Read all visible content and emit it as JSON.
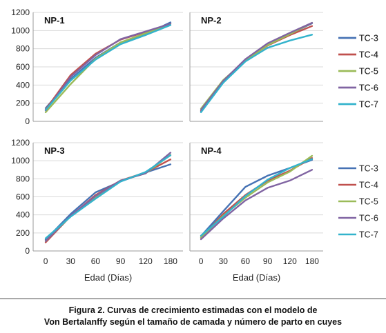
{
  "chart_data": [
    {
      "type": "line",
      "title": "NP-1",
      "categories": [
        "0",
        "30",
        "60",
        "90",
        "120",
        "180"
      ],
      "ylim": [
        0,
        1200
      ],
      "yticks": [
        0,
        200,
        400,
        600,
        800,
        1000,
        1200
      ],
      "xlabel": "",
      "ylabel": "",
      "legend": "right",
      "series": [
        {
          "name": "TC-3",
          "values": [
            145,
            465,
            700,
            870,
            960,
            1090
          ]
        },
        {
          "name": "TC-4",
          "values": [
            130,
            510,
            745,
            900,
            985,
            1075
          ]
        },
        {
          "name": "TC-5",
          "values": [
            100,
            410,
            690,
            870,
            970,
            1075
          ]
        },
        {
          "name": "TC-6",
          "values": [
            120,
            490,
            730,
            905,
            990,
            1075
          ]
        },
        {
          "name": "TC-7",
          "values": [
            125,
            450,
            680,
            850,
            950,
            1060
          ]
        }
      ]
    },
    {
      "type": "line",
      "title": "NP-2",
      "categories": [
        "0",
        "30",
        "60",
        "90",
        "120",
        "180"
      ],
      "ylim": [
        0,
        1200
      ],
      "yticks": [
        0,
        200,
        400,
        600,
        800,
        1000,
        1200
      ],
      "xlabel": "",
      "ylabel": "",
      "legend": "right",
      "series": [
        {
          "name": "TC-3",
          "values": [
            110,
            430,
            670,
            840,
            960,
            1080
          ]
        },
        {
          "name": "TC-4",
          "values": [
            120,
            440,
            675,
            835,
            950,
            1050
          ]
        },
        {
          "name": "TC-5",
          "values": [
            140,
            455,
            670,
            840,
            960,
            1085
          ]
        },
        {
          "name": "TC-6",
          "values": [
            125,
            445,
            685,
            860,
            975,
            1085
          ]
        },
        {
          "name": "TC-7",
          "values": [
            100,
            425,
            660,
            810,
            890,
            955
          ]
        }
      ]
    },
    {
      "type": "line",
      "title": "NP-3",
      "categories": [
        "0",
        "30",
        "60",
        "90",
        "120",
        "180"
      ],
      "ylim": [
        0,
        1200
      ],
      "yticks": [
        0,
        200,
        400,
        600,
        800,
        1000,
        1200
      ],
      "xlabel": "Edad (Días)",
      "ylabel": "",
      "legend": "none",
      "series": [
        {
          "name": "TC-3",
          "values": [
            125,
            410,
            650,
            770,
            870,
            960
          ]
        },
        {
          "name": "TC-4",
          "values": [
            95,
            385,
            620,
            780,
            870,
            1015
          ]
        },
        {
          "name": "TC-5",
          "values": [
            110,
            385,
            590,
            780,
            860,
            1065
          ]
        },
        {
          "name": "TC-6",
          "values": [
            110,
            390,
            610,
            780,
            860,
            1090
          ]
        },
        {
          "name": "TC-7",
          "values": [
            140,
            380,
            580,
            770,
            875,
            1060
          ]
        }
      ]
    },
    {
      "type": "line",
      "title": "NP-4",
      "categories": [
        "0",
        "30",
        "60",
        "90",
        "120",
        "180"
      ],
      "ylim": [
        0,
        1200
      ],
      "yticks": [
        0,
        200,
        400,
        600,
        800,
        1000,
        1200
      ],
      "xlabel": "Edad (Días)",
      "ylabel": "",
      "legend": "right",
      "series": [
        {
          "name": "TC-3",
          "values": [
            165,
            440,
            710,
            835,
            920,
            1010
          ]
        },
        {
          "name": "TC-4",
          "values": [
            145,
            410,
            620,
            780,
            890,
            1030
          ]
        },
        {
          "name": "TC-5",
          "values": [
            150,
            390,
            590,
            760,
            880,
            1055
          ]
        },
        {
          "name": "TC-6",
          "values": [
            130,
            360,
            560,
            700,
            780,
            900
          ]
        },
        {
          "name": "TC-7",
          "values": [
            170,
            380,
            610,
            790,
            920,
            1020
          ]
        }
      ]
    }
  ],
  "colors": {
    "TC-3": "#4672b4",
    "TC-4": "#c0504d",
    "TC-5": "#9bbb59",
    "TC-6": "#8064a2",
    "TC-7": "#33b3cc"
  },
  "caption": {
    "line1": "Figura 2.  Curvas de crecimiento estimadas con el modelo de",
    "line2": "Von Bertalanffy según el tamaño de camada y número de parto en cuyes"
  }
}
